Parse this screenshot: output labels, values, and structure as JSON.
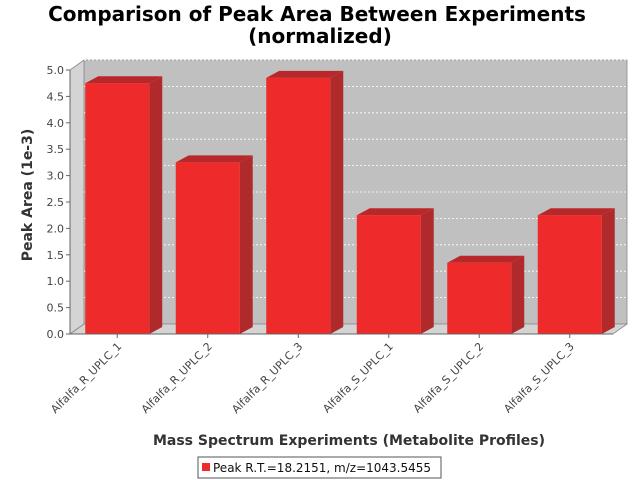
{
  "chart_data": {
    "type": "bar",
    "title": "Comparison of Peak Area Between Experiments",
    "subtitle": "(normalized)",
    "xlabel": "Mass Spectrum Experiments (Metabolite Profiles)",
    "ylabel": "Peak Area (1e-3)",
    "ylim": [
      0,
      5.0
    ],
    "yticks": [
      "0.0",
      "0.5",
      "1.0",
      "1.5",
      "2.0",
      "2.5",
      "3.0",
      "3.5",
      "4.0",
      "4.5",
      "5.0"
    ],
    "categories": [
      "Alfalfa_R_UPLC_1",
      "Alfalfa_R_UPLC_2",
      "Alfalfa_R_UPLC_3",
      "Alfalfa_S_UPLC_1",
      "Alfalfa_S_UPLC_2",
      "Alfalfa_S_UPLC_3"
    ],
    "series": [
      {
        "name": "Peak R.T.=18.2151, m/z=1043.5455",
        "values": [
          4.75,
          3.25,
          4.85,
          2.25,
          1.35,
          2.25
        ]
      }
    ],
    "grid": true,
    "legend": "bottom",
    "colors": {
      "bar": "#ee2a2a",
      "bar_top": "#b8282a",
      "bar_side": "#b02a2c",
      "plot_bg": "#c0c0c0",
      "plot_wall": "#d4d4d4"
    }
  }
}
